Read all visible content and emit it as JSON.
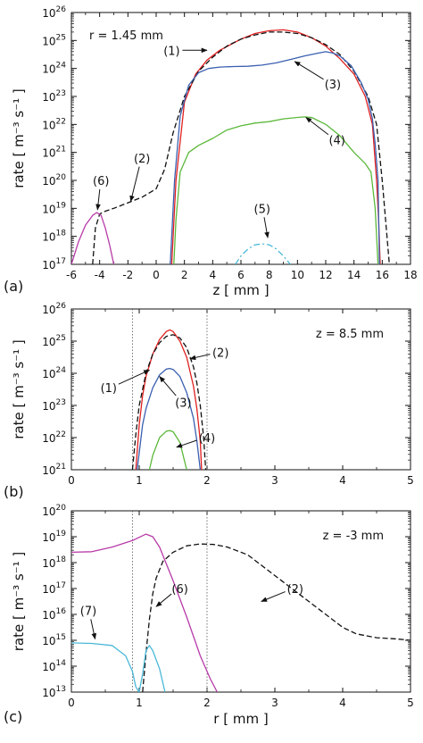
{
  "colors": {
    "red": "#e02020",
    "blue": "#3a5fb0",
    "green": "#5cb83a",
    "magenta": "#b83aa8",
    "cyan": "#4ab8d8",
    "black": "#111111"
  },
  "chart_data": [
    {
      "type": "line",
      "panel_label": "(a)",
      "annotation": "r = 1.45 mm",
      "xlabel": "z [ mm ]",
      "ylabel": "rate [ m-3 s-1 ]",
      "xlim": [
        -6,
        18
      ],
      "ylim_log10": [
        17,
        26
      ],
      "xticks": [
        -6,
        -4,
        -2,
        0,
        2,
        4,
        6,
        8,
        10,
        12,
        14,
        16,
        18
      ],
      "yticks_log10": [
        17,
        18,
        19,
        20,
        21,
        22,
        23,
        24,
        25,
        26
      ],
      "series": [
        {
          "name": "(1)",
          "color": "red",
          "dash": "solid",
          "x": [
            1.1,
            1.4,
            2.0,
            2.8,
            3.6,
            4.5,
            6.0,
            7.0,
            8.0,
            9.0,
            10.0,
            11.0,
            12.0,
            13.0,
            14.0,
            14.8,
            15.3,
            15.6,
            15.75,
            15.85
          ],
          "log10y": [
            17.0,
            20.0,
            22.8,
            23.8,
            24.3,
            24.65,
            25.05,
            25.25,
            25.35,
            25.38,
            25.3,
            25.1,
            24.8,
            24.35,
            23.8,
            23.0,
            22.0,
            20.0,
            18.5,
            17.0
          ]
        },
        {
          "name": "(2)",
          "color": "black",
          "dash": "dashed",
          "x": [
            -4.5,
            -4.3,
            -4.0,
            -3.6,
            -3.0,
            -2.0,
            -1.0,
            0.0,
            0.6,
            1.2,
            2.0,
            3.0,
            4.0,
            5.0,
            6.0,
            7.0,
            8.0,
            9.0,
            10.0,
            11.0,
            12.0,
            13.0,
            14.0,
            15.0,
            15.6,
            16.0,
            16.3,
            16.5
          ],
          "log10y": [
            17.0,
            18.3,
            18.8,
            18.9,
            19.0,
            19.2,
            19.4,
            19.7,
            20.4,
            21.7,
            23.0,
            23.9,
            24.4,
            24.8,
            25.05,
            25.2,
            25.3,
            25.3,
            25.25,
            25.1,
            24.85,
            24.5,
            23.9,
            23.0,
            22.0,
            20.0,
            18.2,
            17.0
          ]
        },
        {
          "name": "(3)",
          "color": "blue",
          "dash": "solid",
          "x": [
            1.0,
            1.3,
            1.7,
            2.3,
            3.0,
            3.7,
            4.5,
            5.5,
            6.5,
            7.5,
            8.5,
            9.5,
            10.5,
            11.5,
            12.0,
            12.5,
            13.0,
            13.8,
            14.5,
            15.0,
            15.3,
            15.5,
            15.7,
            15.8
          ],
          "log10y": [
            17.0,
            20.0,
            22.3,
            23.4,
            23.85,
            24.0,
            24.05,
            24.07,
            24.08,
            24.12,
            24.2,
            24.32,
            24.45,
            24.55,
            24.6,
            24.55,
            24.45,
            24.1,
            23.5,
            22.9,
            22.2,
            21.3,
            20.0,
            17.0
          ]
        },
        {
          "name": "(4)",
          "color": "green",
          "dash": "solid",
          "x": [
            1.25,
            1.4,
            1.7,
            2.3,
            3.0,
            4.0,
            5.0,
            6.0,
            7.0,
            8.0,
            9.0,
            10.0,
            10.5,
            11.0,
            12.0,
            13.0,
            14.0,
            14.8,
            15.2,
            15.5,
            15.7
          ],
          "log10y": [
            17.0,
            18.6,
            20.3,
            21.0,
            21.25,
            21.5,
            21.8,
            21.95,
            22.05,
            22.1,
            22.2,
            22.25,
            22.27,
            22.25,
            22.0,
            21.6,
            21.0,
            20.6,
            20.3,
            19.0,
            17.0
          ]
        },
        {
          "name": "(5)",
          "color": "cyan",
          "dash": "dashdot",
          "x": [
            5.6,
            6.0,
            6.5,
            7.0,
            7.5,
            8.0,
            8.5,
            9.0,
            9.5
          ],
          "log10y": [
            17.0,
            17.3,
            17.55,
            17.7,
            17.73,
            17.7,
            17.55,
            17.3,
            17.0
          ]
        },
        {
          "name": "(6)",
          "color": "magenta",
          "dash": "solid",
          "x": [
            -6.0,
            -5.5,
            -5.0,
            -4.5,
            -4.2,
            -3.9,
            -3.6,
            -3.3,
            -3.0
          ],
          "log10y": [
            17.0,
            17.8,
            18.4,
            18.75,
            18.85,
            18.75,
            18.3,
            17.7,
            17.0
          ]
        }
      ],
      "labels": [
        {
          "text": "(1)",
          "x": 1.1,
          "log10y": 24.65,
          "arrow_to_x": 3.6,
          "arrow_to_log10y": 24.65
        },
        {
          "text": "(2)",
          "x": -1.0,
          "log10y": 20.8,
          "arrow_to_x": -1.8,
          "arrow_to_log10y": 19.25
        },
        {
          "text": "(3)",
          "x": 12.5,
          "log10y": 23.45,
          "arrow_to_x": 9.8,
          "arrow_to_log10y": 24.25
        },
        {
          "text": "(4)",
          "x": 12.8,
          "log10y": 21.45,
          "arrow_to_x": 10.6,
          "arrow_to_log10y": 22.25
        },
        {
          "text": "(5)",
          "x": 7.5,
          "log10y": 19.0,
          "arrow_to_x": 7.9,
          "arrow_to_log10y": 17.95
        },
        {
          "text": "(6)",
          "x": -3.9,
          "log10y": 20.0,
          "arrow_to_x": -4.15,
          "arrow_to_log10y": 18.95
        }
      ]
    },
    {
      "type": "line",
      "panel_label": "(b)",
      "annotation": "z = 8.5 mm",
      "xlabel": "",
      "ylabel": "rate [ m-3 s-1 ]",
      "xlim": [
        0,
        5
      ],
      "ylim_log10": [
        21,
        26
      ],
      "xticks": [
        0,
        1,
        2,
        3,
        4,
        5
      ],
      "yticks_log10": [
        21,
        22,
        23,
        24,
        25,
        26
      ],
      "vlines": [
        0.9,
        2.0
      ],
      "series": [
        {
          "name": "(1)",
          "color": "red",
          "dash": "solid",
          "x": [
            0.95,
            1.0,
            1.05,
            1.1,
            1.2,
            1.3,
            1.4,
            1.45,
            1.5,
            1.6,
            1.7,
            1.8,
            1.85,
            1.9,
            1.92
          ],
          "log10y": [
            21.0,
            22.4,
            23.3,
            23.9,
            24.6,
            25.05,
            25.3,
            25.35,
            25.3,
            25.0,
            24.5,
            23.6,
            22.9,
            21.9,
            21.0
          ]
        },
        {
          "name": "(2)",
          "color": "black",
          "dash": "dashed",
          "x": [
            0.9,
            0.95,
            1.0,
            1.1,
            1.2,
            1.3,
            1.4,
            1.5,
            1.6,
            1.7,
            1.8,
            1.85,
            1.9,
            1.95,
            1.98
          ],
          "log10y": [
            21.0,
            22.1,
            23.0,
            24.0,
            24.6,
            24.95,
            25.15,
            25.2,
            25.1,
            24.8,
            24.2,
            23.7,
            23.0,
            22.0,
            21.0
          ]
        },
        {
          "name": "(3)",
          "color": "blue",
          "dash": "solid",
          "x": [
            0.97,
            1.05,
            1.1,
            1.2,
            1.3,
            1.4,
            1.45,
            1.5,
            1.6,
            1.7,
            1.8,
            1.85,
            1.9
          ],
          "log10y": [
            21.0,
            22.4,
            22.9,
            23.55,
            23.95,
            24.13,
            24.15,
            24.12,
            23.9,
            23.4,
            22.6,
            21.9,
            21.0
          ]
        },
        {
          "name": "(4)",
          "color": "green",
          "dash": "solid",
          "x": [
            1.15,
            1.2,
            1.3,
            1.4,
            1.45,
            1.5,
            1.6,
            1.7
          ],
          "log10y": [
            21.0,
            21.45,
            22.0,
            22.2,
            22.22,
            22.18,
            21.85,
            21.0
          ]
        }
      ],
      "labels": [
        {
          "text": "(1)",
          "x": 0.55,
          "log10y": 23.55,
          "arrow_to_x": 1.15,
          "arrow_to_log10y": 24.1
        },
        {
          "text": "(2)",
          "x": 2.2,
          "log10y": 24.65,
          "arrow_to_x": 1.75,
          "arrow_to_log10y": 24.45
        },
        {
          "text": "(3)",
          "x": 1.65,
          "log10y": 23.1,
          "arrow_to_x": 1.3,
          "arrow_to_log10y": 23.9
        },
        {
          "text": "(4)",
          "x": 2.0,
          "log10y": 22.0,
          "arrow_to_x": 1.55,
          "arrow_to_log10y": 21.7
        }
      ]
    },
    {
      "type": "line",
      "panel_label": "(c)",
      "annotation": "z =  -3 mm",
      "xlabel": "r [ mm ]",
      "ylabel": "rate [ m-3 s-1 ]",
      "xlim": [
        0,
        5
      ],
      "ylim_log10": [
        13,
        20
      ],
      "xticks": [
        0,
        1,
        2,
        3,
        4,
        5
      ],
      "yticks_log10": [
        13,
        14,
        15,
        16,
        17,
        18,
        19,
        20
      ],
      "vlines": [
        0.9,
        2.0
      ],
      "series": [
        {
          "name": "(2)",
          "color": "black",
          "dash": "dashed",
          "x": [
            1.05,
            1.1,
            1.15,
            1.2,
            1.25,
            1.35,
            1.5,
            1.7,
            1.9,
            2.1,
            2.3,
            2.6,
            3.0,
            3.4,
            3.8,
            4.0,
            4.2,
            4.5,
            4.8,
            5.0
          ],
          "log10y": [
            13.0,
            14.5,
            15.8,
            16.8,
            17.4,
            18.05,
            18.4,
            18.65,
            18.72,
            18.7,
            18.6,
            18.3,
            17.5,
            16.7,
            15.9,
            15.5,
            15.25,
            15.1,
            15.05,
            15.0
          ]
        },
        {
          "name": "(6)",
          "color": "magenta",
          "dash": "solid",
          "x": [
            0.0,
            0.3,
            0.6,
            0.9,
            1.1,
            1.2,
            1.3,
            1.5,
            1.7,
            1.9,
            2.05,
            2.15
          ],
          "log10y": [
            18.4,
            18.42,
            18.6,
            18.85,
            19.1,
            19.0,
            18.6,
            17.3,
            15.9,
            14.4,
            13.5,
            13.0
          ]
        },
        {
          "name": "(7)",
          "color": "cyan",
          "dash": "solid",
          "x": [
            0.0,
            0.3,
            0.6,
            0.8,
            0.9,
            0.95,
            1.0,
            1.05,
            1.1,
            1.15,
            1.2,
            1.3,
            1.38
          ],
          "log10y": [
            14.9,
            14.88,
            14.8,
            14.4,
            13.8,
            13.2,
            13.0,
            13.7,
            14.6,
            14.8,
            14.6,
            13.9,
            13.0
          ]
        }
      ],
      "labels": [
        {
          "text": "(2)",
          "x": 3.3,
          "log10y": 17.0,
          "arrow_to_x": 2.8,
          "arrow_to_log10y": 16.5
        },
        {
          "text": "(6)",
          "x": 1.6,
          "log10y": 17.0,
          "arrow_to_x": 1.25,
          "arrow_to_log10y": 16.3
        },
        {
          "text": "(7)",
          "x": 0.25,
          "log10y": 16.15,
          "arrow_to_x": 0.35,
          "arrow_to_log10y": 15.05
        }
      ]
    }
  ]
}
